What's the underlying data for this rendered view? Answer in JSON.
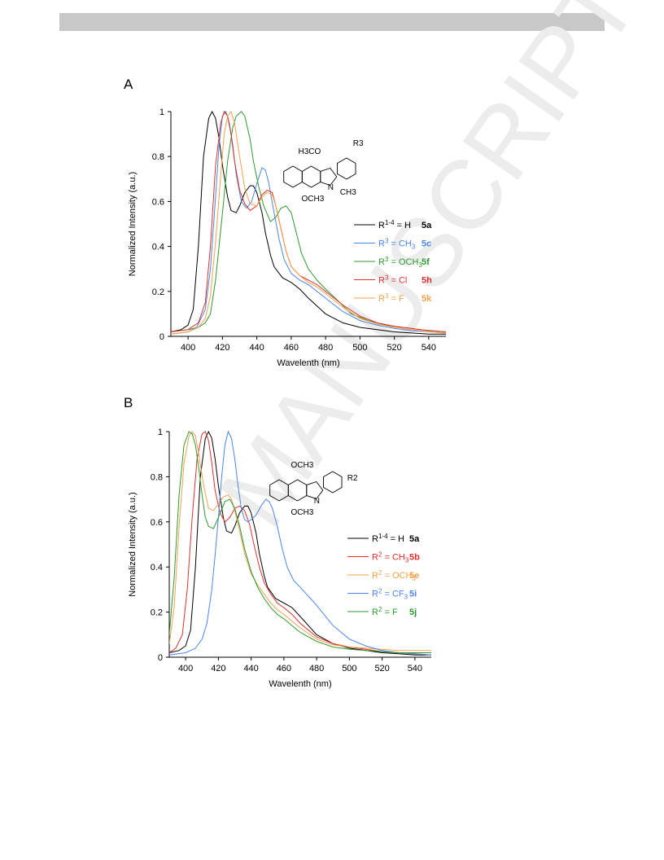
{
  "watermark": {
    "text": "MANUSCRIPT",
    "color": "#e6e6e6"
  },
  "chart_data": [
    {
      "panel": "A",
      "type": "line",
      "xlabel": "Wavelenth (nm)",
      "ylabel": "Normalized Intensity (a.u.)",
      "xlim": [
        390,
        550
      ],
      "ylim": [
        0,
        1
      ],
      "xticks": [
        400,
        420,
        440,
        460,
        480,
        500,
        520,
        540
      ],
      "yticks": [
        0,
        0.2,
        0.4,
        0.6,
        0.8,
        1
      ],
      "ytick_labels": [
        "0",
        "0.2",
        "0.4",
        "0.6",
        "0.8",
        "1"
      ],
      "grid": false,
      "legend_position": "right",
      "structure": {
        "labels": [
          "H3CO",
          "OCH3",
          "CH3",
          "N",
          "R3"
        ]
      },
      "series": [
        {
          "name": "R1-4 = H",
          "label_prefix": "R",
          "label_sup": "1-4",
          "label_rest": " = H",
          "label_sub": "",
          "compound": "5a",
          "color": "#000000",
          "x": [
            390,
            396,
            400,
            403,
            406,
            409,
            412,
            414,
            416,
            418,
            420,
            423,
            425,
            428,
            430,
            433,
            436,
            438,
            440,
            443,
            445,
            448,
            450,
            455,
            460,
            465,
            470,
            480,
            490,
            500,
            510,
            520,
            530,
            540,
            550
          ],
          "y": [
            0.02,
            0.03,
            0.05,
            0.12,
            0.4,
            0.8,
            0.97,
            1.0,
            0.97,
            0.88,
            0.76,
            0.62,
            0.56,
            0.55,
            0.58,
            0.64,
            0.67,
            0.67,
            0.64,
            0.55,
            0.46,
            0.36,
            0.31,
            0.26,
            0.24,
            0.21,
            0.17,
            0.1,
            0.06,
            0.04,
            0.03,
            0.02,
            0.015,
            0.01,
            0.01
          ]
        },
        {
          "name": "R3 = CH3",
          "label_prefix": "R",
          "label_sup": "3",
          "label_rest": " = CH",
          "label_sub": "3",
          "compound": "5c",
          "color": "#4a86e8",
          "x": [
            390,
            400,
            405,
            410,
            413,
            416,
            418,
            420,
            422,
            424,
            426,
            428,
            431,
            434,
            437,
            440,
            443,
            445,
            447,
            450,
            453,
            456,
            460,
            465,
            470,
            480,
            490,
            500,
            510,
            520,
            530,
            540,
            550
          ],
          "y": [
            0.01,
            0.02,
            0.04,
            0.12,
            0.3,
            0.62,
            0.85,
            0.98,
            1.0,
            0.95,
            0.85,
            0.72,
            0.6,
            0.57,
            0.6,
            0.68,
            0.75,
            0.74,
            0.68,
            0.55,
            0.43,
            0.34,
            0.28,
            0.25,
            0.23,
            0.17,
            0.11,
            0.07,
            0.05,
            0.035,
            0.025,
            0.02,
            0.015
          ]
        },
        {
          "name": "R3 = OCH3",
          "label_prefix": "R",
          "label_sup": "3",
          "label_rest": " = OCH",
          "label_sub": "3",
          "compound": "5f",
          "color": "#2e9a2e",
          "x": [
            390,
            400,
            406,
            410,
            413,
            416,
            420,
            423,
            426,
            428,
            431,
            433,
            436,
            438,
            441,
            444,
            448,
            451,
            454,
            457,
            460,
            463,
            466,
            470,
            475,
            480,
            487,
            495,
            505,
            515,
            525,
            535,
            550
          ],
          "y": [
            0.02,
            0.03,
            0.04,
            0.06,
            0.1,
            0.25,
            0.55,
            0.78,
            0.93,
            0.98,
            1.0,
            0.98,
            0.88,
            0.78,
            0.67,
            0.58,
            0.51,
            0.53,
            0.57,
            0.58,
            0.55,
            0.46,
            0.37,
            0.3,
            0.25,
            0.21,
            0.16,
            0.1,
            0.07,
            0.05,
            0.04,
            0.03,
            0.02
          ]
        },
        {
          "name": "R3 = Cl",
          "label_prefix": "R",
          "label_sup": "3",
          "label_rest": " = Cl",
          "label_sub": "",
          "compound": "5h",
          "color": "#e0302e",
          "x": [
            390,
            400,
            406,
            410,
            413,
            416,
            419,
            421,
            423,
            425,
            427,
            430,
            433,
            436,
            440,
            443,
            446,
            449,
            451,
            454,
            457,
            460,
            465,
            470,
            475,
            480,
            490,
            500,
            510,
            520,
            530,
            540,
            550
          ],
          "y": [
            0.02,
            0.03,
            0.06,
            0.15,
            0.4,
            0.76,
            0.95,
            1.0,
            0.98,
            0.9,
            0.78,
            0.65,
            0.59,
            0.56,
            0.58,
            0.63,
            0.65,
            0.64,
            0.58,
            0.48,
            0.38,
            0.31,
            0.27,
            0.25,
            0.23,
            0.2,
            0.14,
            0.09,
            0.06,
            0.045,
            0.035,
            0.025,
            0.02
          ]
        },
        {
          "name": "R3 = F",
          "label_prefix": "R",
          "label_sup": "3",
          "label_rest": " = F",
          "label_sub": "",
          "compound": "5k",
          "color": "#f5a04a",
          "x": [
            390,
            400,
            406,
            410,
            413,
            416,
            419,
            421,
            423,
            425,
            427,
            430,
            433,
            436,
            440,
            443,
            446,
            449,
            451,
            454,
            457,
            460,
            465,
            470,
            475,
            480,
            490,
            500,
            510,
            520,
            530,
            540,
            550
          ],
          "y": [
            0.01,
            0.02,
            0.04,
            0.08,
            0.18,
            0.42,
            0.72,
            0.9,
            0.98,
            1.0,
            0.95,
            0.8,
            0.66,
            0.59,
            0.58,
            0.62,
            0.64,
            0.63,
            0.58,
            0.48,
            0.38,
            0.31,
            0.27,
            0.24,
            0.22,
            0.19,
            0.13,
            0.08,
            0.055,
            0.04,
            0.03,
            0.02,
            0.015
          ]
        }
      ]
    },
    {
      "panel": "B",
      "type": "line",
      "xlabel": "Wavelenth (nm)",
      "ylabel": "Normalized Intensity (a.u.)",
      "xlim": [
        390,
        550
      ],
      "ylim": [
        0,
        1
      ],
      "xticks": [
        400,
        420,
        440,
        460,
        480,
        500,
        520,
        540
      ],
      "yticks": [
        0,
        0.2,
        0.4,
        0.6,
        0.8,
        1
      ],
      "ytick_labels": [
        "0",
        "0.2",
        "0.4",
        "0.6",
        "0.8",
        "1"
      ],
      "grid": false,
      "legend_position": "right",
      "structure": {
        "labels": [
          "OCH3",
          "OCH3",
          "N",
          "R2"
        ]
      },
      "series": [
        {
          "name": "R1-4 = H",
          "label_prefix": "R",
          "label_sup": "1-4",
          "label_rest": " = H",
          "label_sub": "",
          "compound": "5a",
          "color": "#000000",
          "x": [
            390,
            396,
            400,
            403,
            406,
            409,
            412,
            414,
            416,
            418,
            420,
            423,
            425,
            428,
            430,
            433,
            436,
            438,
            440,
            443,
            445,
            448,
            450,
            455,
            460,
            465,
            470,
            480,
            490,
            500,
            510,
            520,
            530,
            540,
            550
          ],
          "y": [
            0.02,
            0.03,
            0.05,
            0.12,
            0.4,
            0.8,
            0.97,
            1.0,
            0.97,
            0.88,
            0.76,
            0.62,
            0.56,
            0.55,
            0.58,
            0.64,
            0.67,
            0.67,
            0.64,
            0.55,
            0.46,
            0.36,
            0.31,
            0.26,
            0.24,
            0.22,
            0.18,
            0.1,
            0.06,
            0.04,
            0.03,
            0.02,
            0.015,
            0.01,
            0.01
          ]
        },
        {
          "name": "R2 = CH3",
          "label_prefix": "R",
          "label_sup": "2",
          "label_rest": " = CH",
          "label_sub": "3",
          "compound": "5b",
          "color": "#e0302e",
          "x": [
            390,
            394,
            398,
            401,
            404,
            407,
            410,
            412,
            414,
            416,
            418,
            421,
            424,
            427,
            430,
            433,
            436,
            439,
            442,
            445,
            448,
            452,
            456,
            460,
            465,
            470,
            480,
            490,
            500,
            510,
            520,
            530,
            540,
            550
          ],
          "y": [
            0.02,
            0.04,
            0.1,
            0.3,
            0.62,
            0.88,
            0.99,
            1.0,
            0.96,
            0.86,
            0.74,
            0.64,
            0.6,
            0.62,
            0.66,
            0.67,
            0.65,
            0.59,
            0.49,
            0.4,
            0.33,
            0.28,
            0.24,
            0.22,
            0.19,
            0.15,
            0.09,
            0.06,
            0.045,
            0.035,
            0.025,
            0.02,
            0.015,
            0.01
          ]
        },
        {
          "name": "R2 = OCH3",
          "label_prefix": "R",
          "label_sup": "2",
          "label_rest": " = OCH",
          "label_sub": "3",
          "compound": "5e",
          "color": "#f5a04a",
          "x": [
            390,
            393,
            396,
            399,
            402,
            404,
            406,
            408,
            411,
            414,
            417,
            420,
            423,
            426,
            428,
            430,
            433,
            436,
            440,
            444,
            448,
            452,
            456,
            460,
            465,
            470,
            480,
            490,
            500,
            510,
            520,
            530,
            540,
            550
          ],
          "y": [
            0.06,
            0.22,
            0.58,
            0.86,
            0.98,
            1.0,
            0.98,
            0.9,
            0.76,
            0.66,
            0.65,
            0.68,
            0.71,
            0.72,
            0.7,
            0.65,
            0.56,
            0.46,
            0.37,
            0.32,
            0.28,
            0.24,
            0.21,
            0.19,
            0.16,
            0.13,
            0.08,
            0.055,
            0.045,
            0.04,
            0.035,
            0.03,
            0.03,
            0.03
          ]
        },
        {
          "name": "R2 = CF3",
          "label_prefix": "R",
          "label_sup": "2",
          "label_rest": " = CF",
          "label_sub": "3",
          "compound": "5i",
          "color": "#4a86e8",
          "x": [
            390,
            400,
            406,
            410,
            413,
            416,
            418,
            420,
            422,
            424,
            426,
            428,
            430,
            432,
            434,
            436,
            438,
            440,
            443,
            446,
            449,
            451,
            453,
            456,
            459,
            462,
            466,
            470,
            475,
            480,
            490,
            500,
            510,
            520,
            530,
            540,
            550
          ],
          "y": [
            0.01,
            0.02,
            0.04,
            0.08,
            0.15,
            0.3,
            0.45,
            0.62,
            0.8,
            0.94,
            1.0,
            0.97,
            0.88,
            0.76,
            0.66,
            0.61,
            0.6,
            0.61,
            0.63,
            0.67,
            0.7,
            0.69,
            0.66,
            0.58,
            0.48,
            0.4,
            0.34,
            0.31,
            0.27,
            0.23,
            0.14,
            0.08,
            0.05,
            0.03,
            0.02,
            0.015,
            0.01
          ]
        },
        {
          "name": "R2 = F",
          "label_prefix": "R",
          "label_sup": "2",
          "label_rest": " = F",
          "label_sub": "",
          "compound": "5j",
          "color": "#2e9a2e",
          "x": [
            390,
            393,
            396,
            399,
            402,
            404,
            406,
            408,
            410,
            412,
            414,
            417,
            420,
            424,
            427,
            430,
            433,
            436,
            440,
            444,
            448,
            452,
            456,
            460,
            465,
            470,
            480,
            490,
            500,
            510,
            520,
            530,
            540,
            550
          ],
          "y": [
            0.1,
            0.35,
            0.72,
            0.94,
            1.0,
            0.99,
            0.94,
            0.84,
            0.72,
            0.62,
            0.58,
            0.57,
            0.62,
            0.69,
            0.7,
            0.66,
            0.58,
            0.48,
            0.38,
            0.31,
            0.26,
            0.22,
            0.19,
            0.17,
            0.14,
            0.11,
            0.07,
            0.045,
            0.035,
            0.03,
            0.025,
            0.02,
            0.02,
            0.02
          ]
        }
      ]
    }
  ]
}
